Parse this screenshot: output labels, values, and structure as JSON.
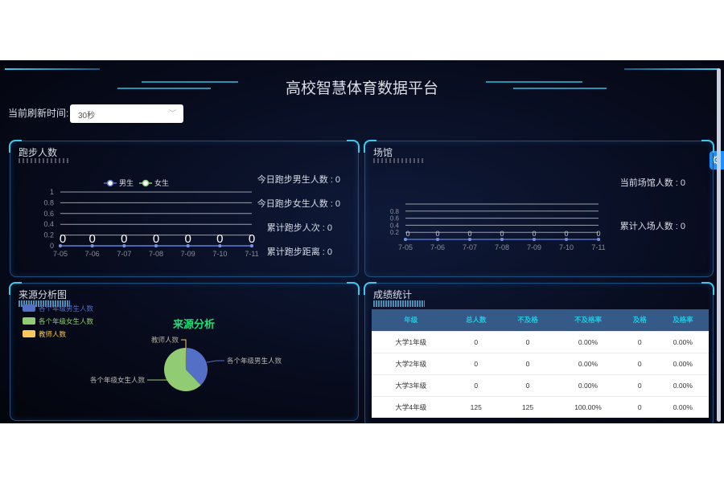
{
  "header": {
    "title": "高校智慧体育数据平台",
    "refresh_label": "当前刷新时间:",
    "refresh_value": "30秒"
  },
  "colors": {
    "male": "#5470c6",
    "female": "#91cc75",
    "teacher": "#fac858",
    "accent": "#3ec8ea",
    "table_header": "#365a87"
  },
  "running": {
    "title": "跑步人数",
    "stats": [
      "今日跑步男生人数 : 0",
      "今日跑步女生人数 : 0",
      "累计跑步人次 : 0",
      "累计跑步距离 : 0"
    ]
  },
  "venue": {
    "title": "场馆",
    "stats": [
      "当前场馆人数 : 0",
      "累计入场人数 : 0"
    ]
  },
  "source": {
    "title": "来源分析图"
  },
  "scores": {
    "title": "成绩统计",
    "columns": [
      "年级",
      "总人数",
      "不及格",
      "不及格率",
      "及格",
      "及格率"
    ],
    "rows": [
      [
        "大学1年级",
        "0",
        "0",
        "0.00%",
        "0",
        "0.00%"
      ],
      [
        "大学2年级",
        "0",
        "0",
        "0.00%",
        "0",
        "0.00%"
      ],
      [
        "大学3年级",
        "0",
        "0",
        "0.00%",
        "0",
        "0.00%"
      ],
      [
        "大学4年级",
        "125",
        "125",
        "100.00%",
        "0",
        "0.00%"
      ]
    ]
  },
  "settings_icon": "gear-icon",
  "chart_data": [
    {
      "type": "line",
      "categories": [
        "7-05",
        "7-06",
        "7-07",
        "7-08",
        "7-09",
        "7-10",
        "7-11"
      ],
      "series": [
        {
          "name": "男生",
          "values": [
            0,
            0,
            0,
            0,
            0,
            0,
            0
          ]
        },
        {
          "name": "女生",
          "values": [
            0,
            0,
            0,
            0,
            0,
            0,
            0
          ]
        }
      ],
      "ylim": [
        0,
        1
      ],
      "yticks": [
        "0",
        "0.2",
        "0.4",
        "0.6",
        "0.8",
        "1"
      ],
      "legend": "top",
      "grid": true
    },
    {
      "type": "line",
      "categories": [
        "7-05",
        "7-06",
        "7-07",
        "7-08",
        "7-09",
        "7-10",
        "7-11"
      ],
      "series": [
        {
          "values": [
            0,
            0,
            0,
            0,
            0,
            0,
            0
          ]
        }
      ],
      "ylim": [
        0,
        1
      ],
      "yticks": [
        "0.2",
        "0.4",
        "0.6",
        "0.8"
      ],
      "grid": true
    },
    {
      "type": "pie",
      "title": "来源分析",
      "labels": [
        "各个年级男生人数",
        "各个年级女生人数",
        "教师人数"
      ],
      "values": [
        38,
        62,
        0.3
      ],
      "legend": "left"
    }
  ]
}
